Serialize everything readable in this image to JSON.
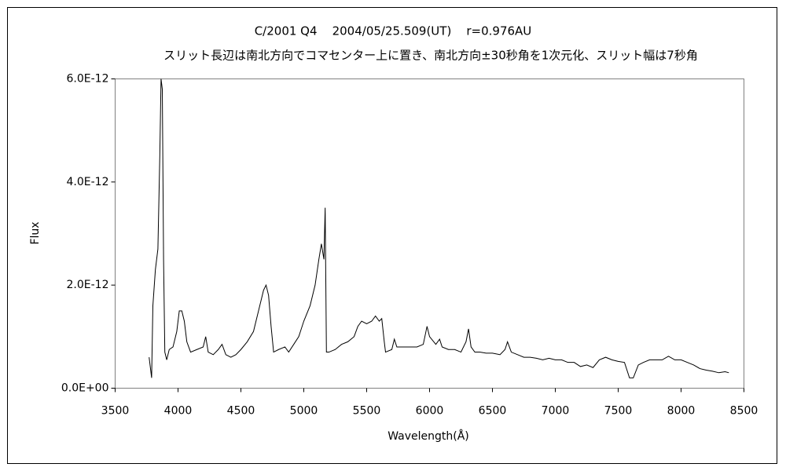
{
  "chart_data": {
    "type": "line",
    "title": "C/2001 Q4    2004/05/25.509(UT)    r=0.976AU",
    "subtitle": "スリット長辺は南北方向でコマセンター上に置き、南北方向±30秒角を1次元化、スリット幅は7秒角",
    "x_label": "Wavelength(Å)",
    "y_label": "Flux",
    "color": "#000000",
    "grid": false,
    "xlim": [
      3500,
      8500
    ],
    "xticks": [
      3500,
      4000,
      4500,
      5000,
      5500,
      6000,
      6500,
      7000,
      7500,
      8000,
      8500
    ],
    "ylim": [
      0,
      6e-12
    ],
    "yticks": [
      {
        "value": 0,
        "label": "0.0E+00"
      },
      {
        "value": 2e-12,
        "label": "2.0E-12"
      },
      {
        "value": 4e-12,
        "label": "4.0E-12"
      },
      {
        "value": 6e-12,
        "label": "6.0E-12"
      }
    ],
    "x": [
      3770,
      3790,
      3800,
      3820,
      3840,
      3855,
      3865,
      3875,
      3885,
      3895,
      3910,
      3930,
      3960,
      3990,
      4010,
      4030,
      4050,
      4070,
      4100,
      4150,
      4200,
      4220,
      4240,
      4280,
      4320,
      4350,
      4380,
      4420,
      4460,
      4500,
      4550,
      4600,
      4640,
      4680,
      4700,
      4720,
      4740,
      4760,
      4800,
      4850,
      4880,
      4920,
      4960,
      5000,
      5050,
      5090,
      5120,
      5140,
      5160,
      5170,
      5180,
      5200,
      5250,
      5300,
      5350,
      5400,
      5430,
      5460,
      5500,
      5540,
      5570,
      5600,
      5620,
      5640,
      5650,
      5700,
      5720,
      5740,
      5800,
      5850,
      5900,
      5950,
      5980,
      6000,
      6050,
      6080,
      6100,
      6150,
      6200,
      6250,
      6290,
      6310,
      6330,
      6360,
      6400,
      6450,
      6500,
      6560,
      6600,
      6620,
      6650,
      6700,
      6750,
      6800,
      6850,
      6900,
      6950,
      7000,
      7050,
      7100,
      7150,
      7200,
      7250,
      7300,
      7350,
      7400,
      7450,
      7500,
      7550,
      7590,
      7620,
      7660,
      7700,
      7750,
      7800,
      7850,
      7900,
      7950,
      8000,
      8050,
      8100,
      8150,
      8200,
      8250,
      8300,
      8350,
      8380
    ],
    "values": [
      6e-13,
      2e-13,
      1.6e-12,
      2.3e-12,
      2.7e-12,
      4.5e-12,
      6e-12,
      5.8e-12,
      2.5e-12,
      7e-13,
      5.5e-13,
      7.5e-13,
      8e-13,
      1.1e-12,
      1.5e-12,
      1.5e-12,
      1.3e-12,
      9e-13,
      7e-13,
      7.5e-13,
      8e-13,
      1e-12,
      7e-13,
      6.5e-13,
      7.5e-13,
      8.5e-13,
      6.5e-13,
      6e-13,
      6.5e-13,
      7.5e-13,
      9e-13,
      1.1e-12,
      1.5e-12,
      1.9e-12,
      2e-12,
      1.8e-12,
      1.2e-12,
      7e-13,
      7.5e-13,
      8e-13,
      7e-13,
      8.5e-13,
      1e-12,
      1.3e-12,
      1.6e-12,
      2e-12,
      2.5e-12,
      2.8e-12,
      2.5e-12,
      3.5e-12,
      7e-13,
      7e-13,
      7.5e-13,
      8.5e-13,
      9e-13,
      1e-12,
      1.2e-12,
      1.3e-12,
      1.25e-12,
      1.3e-12,
      1.4e-12,
      1.3e-12,
      1.35e-12,
      9e-13,
      7e-13,
      7.5e-13,
      9.5e-13,
      8e-13,
      8e-13,
      8e-13,
      8e-13,
      8.5e-13,
      1.2e-12,
      1e-12,
      8.5e-13,
      9.5e-13,
      8e-13,
      7.5e-13,
      7.5e-13,
      7e-13,
      9e-13,
      1.15e-12,
      8e-13,
      7e-13,
      7e-13,
      6.8e-13,
      6.8e-13,
      6.5e-13,
      7.5e-13,
      9e-13,
      7e-13,
      6.5e-13,
      6e-13,
      6e-13,
      5.8e-13,
      5.5e-13,
      5.8e-13,
      5.5e-13,
      5.5e-13,
      5e-13,
      5e-13,
      4.2e-13,
      4.5e-13,
      4e-13,
      5.5e-13,
      6e-13,
      5.5e-13,
      5.2e-13,
      5e-13,
      2e-13,
      2e-13,
      4.5e-13,
      5e-13,
      5.5e-13,
      5.5e-13,
      5.5e-13,
      6.2e-13,
      5.5e-13,
      5.5e-13,
      5e-13,
      4.5e-13,
      3.8e-13,
      3.5e-13,
      3.3e-13,
      3e-13,
      3.2e-13,
      3e-13
    ]
  }
}
